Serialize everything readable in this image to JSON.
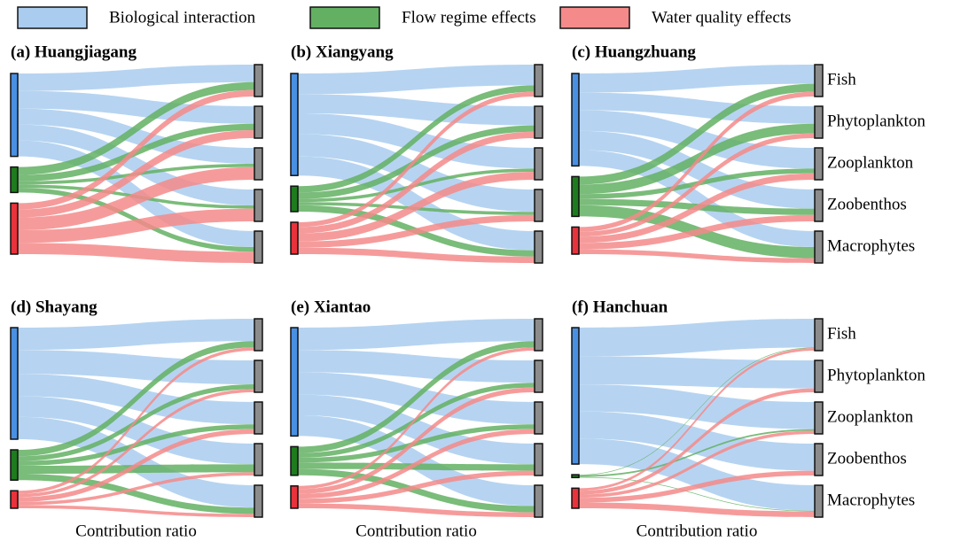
{
  "chart_data": {
    "type": "sankey",
    "x_label": "Contribution ratio",
    "sources": [
      {
        "name": "Biological interaction",
        "color": "#4a90e2",
        "link_color": "#a9ccef"
      },
      {
        "name": "Flow regime effects",
        "color": "#1e7b1e",
        "link_color": "#63b063"
      },
      {
        "name": "Water quality effects",
        "color": "#e8323c",
        "link_color": "#f58a8a"
      }
    ],
    "targets": [
      "Fish",
      "Phytoplankton",
      "Zooplankton",
      "Zoobenthos",
      "Macrophytes"
    ],
    "target_color": "#8c8c8c",
    "panels": [
      {
        "title": "(a) Huangjiagang",
        "flows": [
          [
            0.55,
            0.55,
            0.5,
            0.5,
            0.5
          ],
          [
            0.25,
            0.2,
            0.1,
            0.1,
            0.15
          ],
          [
            0.2,
            0.25,
            0.4,
            0.4,
            0.35
          ]
        ]
      },
      {
        "title": "(b) Xiangyang",
        "flows": [
          [
            0.65,
            0.6,
            0.65,
            0.7,
            0.6
          ],
          [
            0.2,
            0.2,
            0.1,
            0.1,
            0.2
          ],
          [
            0.15,
            0.2,
            0.25,
            0.2,
            0.2
          ]
        ]
      },
      {
        "title": "(c) Huangzhuang",
        "flows": [
          [
            0.6,
            0.55,
            0.65,
            0.6,
            0.5
          ],
          [
            0.25,
            0.3,
            0.15,
            0.2,
            0.35
          ],
          [
            0.15,
            0.15,
            0.2,
            0.2,
            0.15
          ]
        ]
      },
      {
        "title": "(d) Shayang",
        "flows": [
          [
            0.7,
            0.75,
            0.7,
            0.65,
            0.7
          ],
          [
            0.2,
            0.15,
            0.15,
            0.25,
            0.2
          ],
          [
            0.1,
            0.1,
            0.15,
            0.1,
            0.1
          ]
        ]
      },
      {
        "title": "(e) Xiantao",
        "flows": [
          [
            0.7,
            0.7,
            0.7,
            0.65,
            0.65
          ],
          [
            0.2,
            0.15,
            0.15,
            0.2,
            0.2
          ],
          [
            0.1,
            0.15,
            0.15,
            0.15,
            0.15
          ]
        ]
      },
      {
        "title": "(f) Hanchuan",
        "flows": [
          [
            0.9,
            0.88,
            0.85,
            0.85,
            0.8
          ],
          [
            0.02,
            0,
            0.05,
            0,
            0.02
          ],
          [
            0.08,
            0.12,
            0.1,
            0.15,
            0.18
          ]
        ]
      }
    ]
  }
}
